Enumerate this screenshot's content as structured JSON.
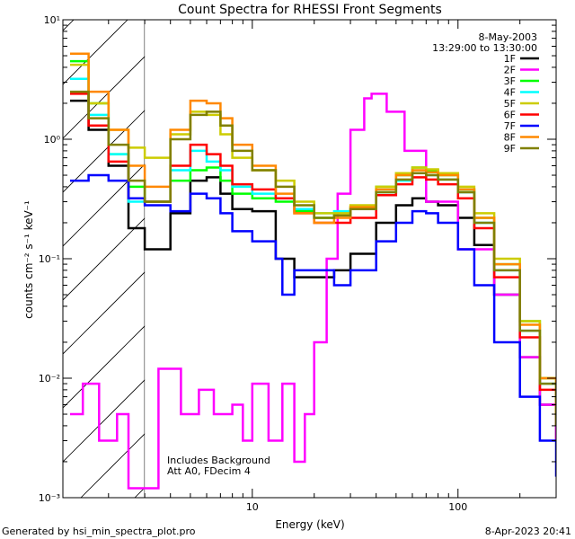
{
  "chart_data": {
    "type": "line",
    "title": "Count Spectra for RHESSI Front Segments",
    "date": "8-May-2003",
    "time_range": "13:29:00 to 13:30:00",
    "xlabel": "Energy (keV)",
    "ylabel": "counts cm⁻² s⁻¹ keV⁻¹",
    "xscale": "log",
    "yscale": "log",
    "xlim": [
      1.2,
      300
    ],
    "ylim": [
      0.001,
      10
    ],
    "x_ticks": [
      {
        "value": 10,
        "label": "10"
      },
      {
        "value": 100,
        "label": "100"
      }
    ],
    "y_ticks": [
      {
        "value": 0.001,
        "label": "10⁻³"
      },
      {
        "value": 0.01,
        "label": "10⁻²"
      },
      {
        "value": 0.1,
        "label": "10⁻¹"
      },
      {
        "value": 1,
        "label": "10⁰"
      },
      {
        "value": 10,
        "label": "10¹"
      }
    ],
    "hatched_region_keV": [
      1.2,
      3
    ],
    "annotations": [
      "Includes Background",
      "Att A0, FDecim 4"
    ],
    "legend_position": "top-right",
    "series": [
      {
        "name": "1F",
        "color": "#000000",
        "x": [
          1.3,
          1.6,
          2,
          2.5,
          3,
          4,
          5,
          6,
          7,
          8,
          10,
          13,
          16,
          20,
          25,
          30,
          40,
          50,
          60,
          70,
          80,
          100,
          120,
          150,
          200,
          250,
          300
        ],
        "y": [
          2.1,
          1.2,
          0.6,
          0.18,
          0.12,
          0.24,
          0.45,
          0.48,
          0.35,
          0.26,
          0.25,
          0.1,
          0.07,
          0.07,
          0.08,
          0.11,
          0.2,
          0.28,
          0.32,
          0.3,
          0.28,
          0.22,
          0.13,
          0.05,
          0.015,
          0.006,
          0.003
        ]
      },
      {
        "name": "2F",
        "color": "#ff00ff",
        "x": [
          1.3,
          1.5,
          1.8,
          2.2,
          2.5,
          3.5,
          4.5,
          5.5,
          6.5,
          8,
          9,
          10,
          12,
          14,
          16,
          18,
          20,
          23,
          26,
          30,
          35,
          38,
          45,
          55,
          70,
          100,
          150,
          200,
          250,
          300
        ],
        "y": [
          0.005,
          0.009,
          0.003,
          0.005,
          0.0012,
          0.012,
          0.005,
          0.008,
          0.005,
          0.006,
          0.003,
          0.009,
          0.003,
          0.009,
          0.002,
          0.005,
          0.02,
          0.1,
          0.35,
          1.2,
          2.2,
          2.4,
          1.7,
          0.8,
          0.3,
          0.12,
          0.05,
          0.015,
          0.006,
          0.003
        ]
      },
      {
        "name": "3F",
        "color": "#00ff00",
        "x": [
          1.3,
          1.6,
          2,
          2.5,
          3,
          4,
          5,
          6,
          7,
          8,
          10,
          13,
          16,
          20,
          25,
          30,
          40,
          50,
          60,
          70,
          80,
          100,
          120,
          150,
          200,
          250,
          300
        ],
        "y": [
          4.5,
          2.0,
          0.75,
          0.4,
          0.3,
          0.45,
          0.55,
          0.58,
          0.45,
          0.35,
          0.32,
          0.3,
          0.25,
          0.22,
          0.24,
          0.27,
          0.4,
          0.5,
          0.58,
          0.55,
          0.5,
          0.38,
          0.22,
          0.09,
          0.03,
          0.01,
          0.005
        ]
      },
      {
        "name": "4F",
        "color": "#00ffff",
        "x": [
          1.3,
          1.6,
          2,
          2.5,
          3,
          4,
          5,
          6,
          7,
          8,
          10,
          13,
          16,
          20,
          25,
          30,
          40,
          50,
          60,
          70,
          80,
          100,
          120,
          150,
          200,
          250,
          300
        ],
        "y": [
          3.2,
          1.6,
          0.75,
          0.3,
          0.3,
          0.55,
          0.8,
          0.65,
          0.55,
          0.4,
          0.35,
          0.32,
          0.26,
          0.24,
          0.25,
          0.26,
          0.36,
          0.45,
          0.52,
          0.5,
          0.46,
          0.36,
          0.2,
          0.08,
          0.025,
          0.009,
          0.004
        ]
      },
      {
        "name": "5F",
        "color": "#cccc00",
        "x": [
          1.3,
          1.6,
          2,
          2.5,
          3,
          4,
          5,
          6,
          7,
          8,
          10,
          13,
          16,
          20,
          25,
          30,
          40,
          50,
          60,
          70,
          80,
          100,
          120,
          150,
          200,
          250,
          300
        ],
        "y": [
          4.2,
          2.0,
          1.2,
          0.85,
          0.7,
          1.1,
          1.7,
          1.6,
          1.1,
          0.7,
          0.55,
          0.45,
          0.3,
          0.24,
          0.24,
          0.28,
          0.4,
          0.52,
          0.58,
          0.56,
          0.52,
          0.4,
          0.24,
          0.1,
          0.03,
          0.01,
          0.005
        ]
      },
      {
        "name": "6F",
        "color": "#ff0000",
        "x": [
          1.3,
          1.6,
          2,
          2.5,
          3,
          4,
          5,
          6,
          7,
          8,
          10,
          13,
          16,
          20,
          25,
          30,
          40,
          50,
          60,
          70,
          80,
          100,
          120,
          150,
          200,
          250,
          300
        ],
        "y": [
          2.4,
          1.3,
          0.65,
          0.32,
          0.3,
          0.6,
          0.9,
          0.75,
          0.6,
          0.42,
          0.38,
          0.32,
          0.24,
          0.2,
          0.2,
          0.22,
          0.34,
          0.42,
          0.48,
          0.46,
          0.42,
          0.32,
          0.18,
          0.07,
          0.022,
          0.008,
          0.004
        ]
      },
      {
        "name": "7F",
        "color": "#0000ff",
        "x": [
          1.3,
          1.6,
          2,
          2.5,
          3,
          4,
          5,
          6,
          7,
          8,
          10,
          13,
          14,
          16,
          20,
          25,
          30,
          40,
          50,
          60,
          70,
          80,
          100,
          120,
          150,
          200,
          250,
          300
        ],
        "y": [
          0.45,
          0.5,
          0.45,
          0.32,
          0.28,
          0.25,
          0.35,
          0.32,
          0.24,
          0.17,
          0.14,
          0.1,
          0.05,
          0.08,
          0.08,
          0.06,
          0.08,
          0.14,
          0.2,
          0.25,
          0.24,
          0.2,
          0.12,
          0.06,
          0.02,
          0.007,
          0.003,
          0.0015
        ]
      },
      {
        "name": "8F",
        "color": "#ff8800",
        "x": [
          1.3,
          1.6,
          2,
          2.5,
          3,
          4,
          5,
          6,
          7,
          8,
          10,
          13,
          16,
          20,
          25,
          30,
          40,
          50,
          60,
          70,
          80,
          100,
          120,
          150,
          200,
          250,
          300
        ],
        "y": [
          5.2,
          2.5,
          1.2,
          0.6,
          0.4,
          1.2,
          2.1,
          2.0,
          1.5,
          0.9,
          0.6,
          0.35,
          0.24,
          0.2,
          0.22,
          0.27,
          0.38,
          0.5,
          0.55,
          0.53,
          0.5,
          0.38,
          0.22,
          0.09,
          0.028,
          0.01,
          0.005
        ]
      },
      {
        "name": "9F",
        "color": "#808000",
        "x": [
          1.3,
          1.6,
          2,
          2.5,
          3,
          4,
          5,
          6,
          7,
          8,
          10,
          13,
          16,
          20,
          25,
          30,
          40,
          50,
          60,
          70,
          80,
          100,
          120,
          150,
          200,
          250,
          300
        ],
        "y": [
          2.5,
          1.5,
          0.9,
          0.45,
          0.3,
          1.0,
          1.6,
          1.7,
          1.3,
          0.8,
          0.55,
          0.4,
          0.28,
          0.22,
          0.23,
          0.26,
          0.36,
          0.46,
          0.52,
          0.5,
          0.46,
          0.36,
          0.2,
          0.08,
          0.025,
          0.009,
          0.004
        ]
      }
    ]
  },
  "footer": {
    "generated_by": "Generated by hsi_min_spectra_plot.pro",
    "timestamp": "8-Apr-2023 20:41"
  }
}
